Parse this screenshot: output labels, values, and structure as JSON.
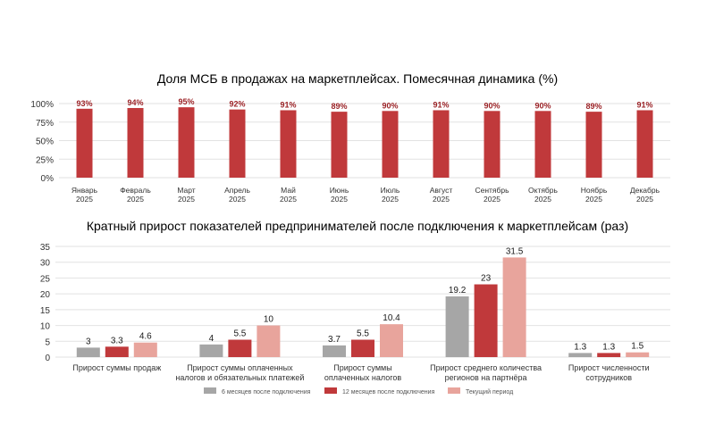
{
  "colors": {
    "bar_main": "#c0393b",
    "bar_gray": "#a6a6a6",
    "bar_red": "#c0393b",
    "bar_pink": "#e8a49c",
    "label_red": "#9b2226",
    "grid": "#e2e2e2",
    "text": "#1a1a1a",
    "axis_text": "#333333",
    "legend_text": "#555555"
  },
  "chart_data": [
    {
      "type": "bar",
      "title": "Доля МСБ в продажах на маркетплейсах. Помесячная динамика (%)",
      "categories": [
        [
          "Январь",
          "2025"
        ],
        [
          "Февраль",
          "2025"
        ],
        [
          "Март",
          "2025"
        ],
        [
          "Апрель",
          "2025"
        ],
        [
          "Май",
          "2025"
        ],
        [
          "Июнь",
          "2025"
        ],
        [
          "Июль",
          "2025"
        ],
        [
          "Август",
          "2025"
        ],
        [
          "Сентябрь",
          "2025"
        ],
        [
          "Октябрь",
          "2025"
        ],
        [
          "Ноябрь",
          "2025"
        ],
        [
          "Декабрь",
          "2025"
        ]
      ],
      "values": [
        93,
        94,
        95,
        92,
        91,
        89,
        90,
        91,
        90,
        90,
        89,
        91
      ],
      "value_labels": [
        "93%",
        "94%",
        "95%",
        "92%",
        "91%",
        "89%",
        "90%",
        "91%",
        "90%",
        "90%",
        "89%",
        "91%"
      ],
      "yticks": [
        0,
        25,
        50,
        75,
        100
      ],
      "ytick_labels": [
        "0%",
        "25%",
        "50%",
        "75%",
        "100%"
      ],
      "ylim": [
        0,
        100
      ],
      "grid": true
    },
    {
      "type": "bar",
      "title": "Кратный прирост показателей предпринимателей после подключения к маркетплейсам (раз)",
      "categories": [
        [
          "Прирост суммы продаж"
        ],
        [
          "Прирост суммы оплаченных",
          "налогов и обязательных платежей"
        ],
        [
          "Прирост суммы",
          "оплаченных налогов"
        ],
        [
          "Прирост среднего количества",
          "регионов на партнёра"
        ],
        [
          "Прирост численности",
          "сотрудников"
        ]
      ],
      "series": [
        {
          "name": "6 месяцев после подключения",
          "values": [
            3,
            4,
            3.7,
            19.2,
            1.3
          ],
          "labels": [
            "3",
            "4",
            "3.7",
            "19.2",
            "1.3"
          ]
        },
        {
          "name": "12 месяцев после подключения",
          "values": [
            3.3,
            5.5,
            5.5,
            23,
            1.3
          ],
          "labels": [
            "3.3",
            "5.5",
            "5.5",
            "23",
            "1.3"
          ]
        },
        {
          "name": "Текущий период",
          "values": [
            4.6,
            10,
            10.4,
            31.5,
            1.5
          ],
          "labels": [
            "4.6",
            "10",
            "10.4",
            "31.5",
            "1.5"
          ]
        }
      ],
      "yticks": [
        0,
        5,
        10,
        15,
        20,
        25,
        30,
        35
      ],
      "ylim": [
        0,
        35
      ],
      "grid": true,
      "legend_position": "bottom"
    }
  ]
}
